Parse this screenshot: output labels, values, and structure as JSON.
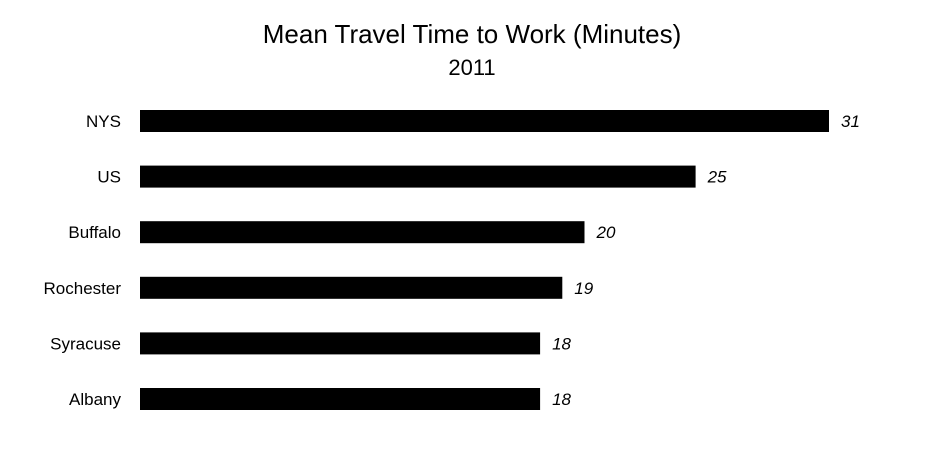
{
  "chart_data": {
    "type": "bar",
    "orientation": "horizontal",
    "title": "Mean Travel Time to Work (Minutes)",
    "subtitle": "2011",
    "categories": [
      "NYS",
      "US",
      "Buffalo",
      "Rochester",
      "Syracuse",
      "Albany"
    ],
    "values": [
      31,
      25,
      20,
      19,
      18,
      18
    ],
    "xlim": [
      0,
      31
    ],
    "bar_color": "#000000",
    "grid": false,
    "legend": "none",
    "value_labels": "italic, right of bar"
  }
}
